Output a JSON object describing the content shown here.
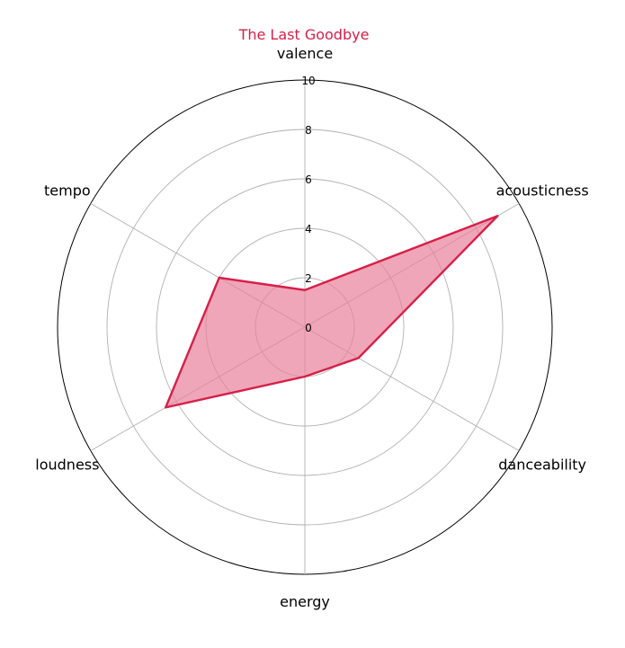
{
  "chart_data": {
    "type": "radar",
    "title": "The Last Goodbye",
    "axes": [
      "valence",
      "acousticness",
      "danceability",
      "energy",
      "loudness",
      "tempo"
    ],
    "values": [
      1.5,
      9.0,
      2.5,
      2.0,
      6.5,
      4.0
    ],
    "rlim": [
      0,
      10
    ],
    "rticks": [
      0,
      2,
      4,
      6,
      8,
      10
    ],
    "grid": true,
    "legend": "none"
  },
  "colors": {
    "series": "#d6204a",
    "fill": "#e8809a",
    "grid": "#b0b0b0",
    "frame": "#000000"
  }
}
